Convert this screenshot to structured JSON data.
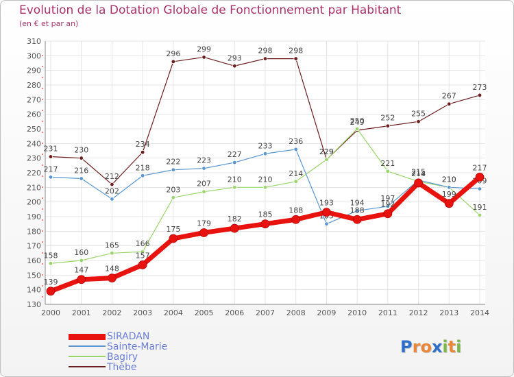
{
  "title": "Evolution de la Dotation Globale de Fonctionnement par Habitant",
  "subtitle": "(en € et par an)",
  "logo": {
    "letters": [
      "P",
      "r",
      "o",
      "x",
      "i",
      "t",
      "i"
    ],
    "colors": [
      "#2f6fc9",
      "#e8873a",
      "#e8873a",
      "#2f6fc9",
      "#7ab648",
      "#e8873a",
      "#7ab648"
    ]
  },
  "chart_data": {
    "type": "line",
    "title": "Evolution de la Dotation Globale de Fonctionnement par Habitant",
    "subtitle": "(en € et par an)",
    "x": [
      "2000",
      "2001",
      "2002",
      "2003",
      "2004",
      "2005",
      "2006",
      "2007",
      "2008",
      "2009",
      "2010",
      "2011",
      "2012",
      "2013",
      "2014"
    ],
    "ylim": [
      130,
      310
    ],
    "yticks": [
      130,
      140,
      150,
      160,
      170,
      180,
      190,
      200,
      210,
      220,
      230,
      240,
      250,
      260,
      270,
      280,
      290,
      300,
      310
    ],
    "grid": true,
    "legend_position": "bottom-left",
    "series": [
      {
        "name": "Thèbe",
        "color": "#6b1d1d",
        "values": [
          231,
          230,
          212,
          234,
          296,
          299,
          293,
          298,
          298,
          229,
          249,
          252,
          255,
          267,
          273
        ],
        "labels": [
          "231",
          "230",
          "212",
          "234",
          "296",
          "299",
          "293",
          "298",
          "298",
          "229",
          "249",
          "252",
          "255",
          "267",
          "273"
        ]
      },
      {
        "name": "Bagiry",
        "color": "#9ad46a",
        "values": [
          158,
          160,
          165,
          166,
          203,
          207,
          210,
          210,
          214,
          229,
          250,
          221,
          214,
          210,
          191
        ],
        "labels": [
          "158",
          "160",
          "165",
          "166",
          "203",
          "207",
          "210",
          "210",
          "214",
          "229",
          "250",
          "221",
          "214",
          "210",
          "191"
        ]
      },
      {
        "name": "Sainte-Marie",
        "color": "#5a96cf",
        "values": [
          217,
          216,
          202,
          218,
          222,
          223,
          227,
          233,
          236,
          185,
          194,
          197,
          215,
          210,
          209
        ],
        "labels": [
          "217",
          "216",
          "202",
          "218",
          "222",
          "223",
          "227",
          "233",
          "236",
          "185",
          "194",
          "197",
          "215",
          "210",
          "209"
        ]
      },
      {
        "name": "SIRADAN",
        "color": "#e8130f",
        "values": [
          139,
          147,
          148,
          157,
          175,
          179,
          182,
          185,
          188,
          193,
          188,
          192,
          213,
          199,
          217
        ],
        "labels": [
          "139",
          "147",
          "148",
          "157",
          "175",
          "179",
          "182",
          "185",
          "188",
          "193",
          "188",
          "192",
          "213",
          "199",
          "217"
        ]
      }
    ],
    "legend": [
      "SIRADAN",
      "Sainte-Marie",
      "Bagiry",
      "Thèbe"
    ]
  }
}
